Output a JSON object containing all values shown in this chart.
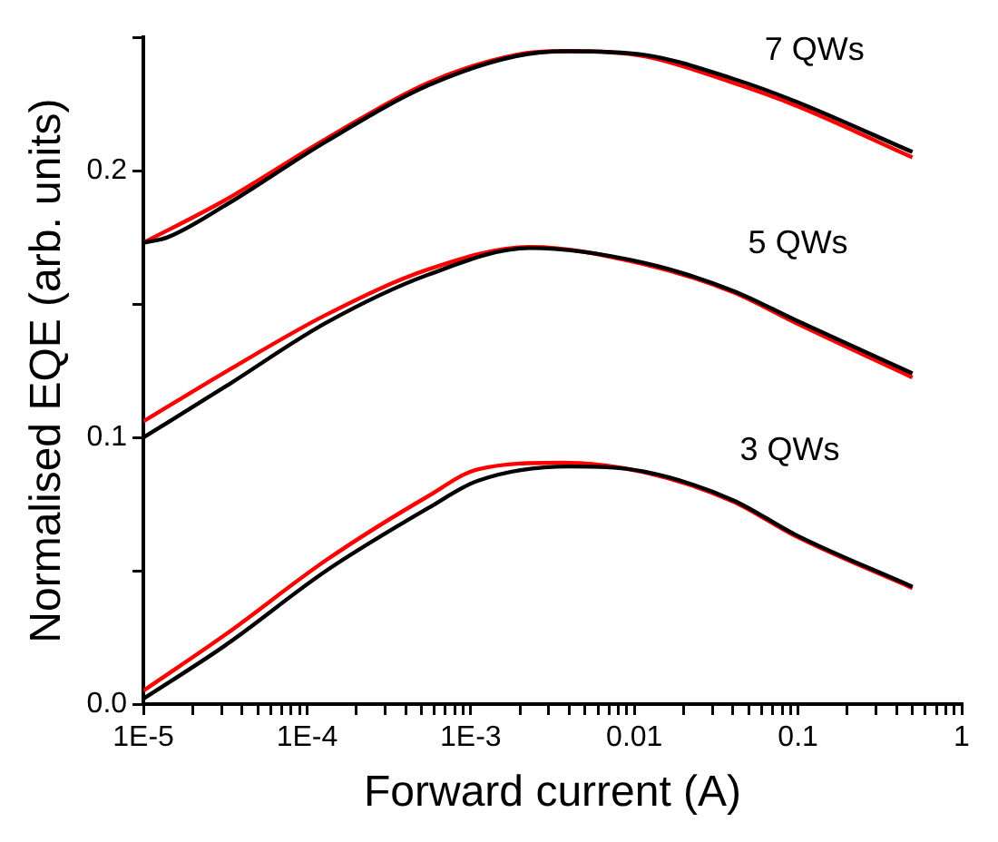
{
  "chart_data": {
    "type": "line",
    "xlabel": "Forward current (A)",
    "ylabel": "Normalised EQE (arb. units)",
    "log": "x",
    "grid": false,
    "legend": false,
    "marker": "none",
    "line_style": "solid",
    "xlim": [
      1e-05,
      1
    ],
    "ylim": [
      0,
      0.25
    ],
    "xticks": [
      {
        "value": 1e-05,
        "label": "1E-5"
      },
      {
        "value": 2e-05,
        "label": null
      },
      {
        "value": 3e-05,
        "label": null
      },
      {
        "value": 4e-05,
        "label": null
      },
      {
        "value": 5e-05,
        "label": null
      },
      {
        "value": 6e-05,
        "label": null
      },
      {
        "value": 7e-05,
        "label": null
      },
      {
        "value": 8e-05,
        "label": null
      },
      {
        "value": 9e-05,
        "label": null
      },
      {
        "value": 0.0001,
        "label": "1E-4"
      },
      {
        "value": 0.0002,
        "label": null
      },
      {
        "value": 0.0003,
        "label": null
      },
      {
        "value": 0.0004,
        "label": null
      },
      {
        "value": 0.0005,
        "label": null
      },
      {
        "value": 0.0006,
        "label": null
      },
      {
        "value": 0.0007,
        "label": null
      },
      {
        "value": 0.0008,
        "label": null
      },
      {
        "value": 0.0009,
        "label": null
      },
      {
        "value": 0.001,
        "label": "1E-3"
      },
      {
        "value": 0.002,
        "label": null
      },
      {
        "value": 0.003,
        "label": null
      },
      {
        "value": 0.004,
        "label": null
      },
      {
        "value": 0.005,
        "label": null
      },
      {
        "value": 0.006,
        "label": null
      },
      {
        "value": 0.007,
        "label": null
      },
      {
        "value": 0.008,
        "label": null
      },
      {
        "value": 0.009,
        "label": null
      },
      0.01,
      {
        "value": 0.02,
        "label": null
      },
      {
        "value": 0.03,
        "label": null
      },
      {
        "value": 0.04,
        "label": null
      },
      {
        "value": 0.05,
        "label": null
      },
      {
        "value": 0.06,
        "label": null
      },
      {
        "value": 0.07,
        "label": null
      },
      {
        "value": 0.08,
        "label": null
      },
      {
        "value": 0.09,
        "label": null
      },
      0.1,
      {
        "value": 0.2,
        "label": null
      },
      {
        "value": 0.3,
        "label": null
      },
      {
        "value": 0.4,
        "label": null
      },
      {
        "value": 0.5,
        "label": null
      },
      {
        "value": 0.6,
        "label": null
      },
      {
        "value": 0.7,
        "label": null
      },
      {
        "value": 0.8,
        "label": null
      },
      {
        "value": 0.9,
        "label": null
      },
      1
    ],
    "yticks": [
      {
        "value": 0,
        "label": "0.0"
      },
      {
        "value": 0.05,
        "label": null
      },
      0.1,
      {
        "value": 0.15,
        "label": null
      },
      0.2,
      {
        "value": 0.25,
        "label": null
      }
    ],
    "annotations": [
      "7 QWs",
      "5 QWs",
      "3 QWs"
    ],
    "series": [
      {
        "color": "#000000",
        "x": [
          1e-05,
          1.4e-05,
          3.16e-05,
          0.000131,
          0.00055,
          0.0019,
          0.0039,
          0.0114,
          0.04,
          0.0965,
          0.5
        ],
        "values": [
          0.173,
          0.175,
          0.187,
          0.211,
          0.232,
          0.243,
          0.2448,
          0.2435,
          0.2345,
          0.226,
          0.207
        ]
      },
      {
        "color": "#ff0000",
        "x": [
          1e-05,
          3.16e-05,
          0.000131,
          0.00055,
          0.0019,
          0.0039,
          0.0114,
          0.04,
          0.0965,
          0.5
        ],
        "values": [
          0.173,
          0.189,
          0.212,
          0.233,
          0.2435,
          0.2449,
          0.243,
          0.233,
          0.2245,
          0.205
        ]
      },
      {
        "color": "#000000",
        "x": [
          1e-05,
          3.16e-05,
          0.000131,
          0.00055,
          0.0023,
          0.0114,
          0.04,
          0.0965,
          0.5
        ],
        "values": [
          0.1,
          0.119,
          0.143,
          0.161,
          0.171,
          0.1655,
          0.155,
          0.144,
          0.124
        ]
      },
      {
        "color": "#ff0000",
        "x": [
          1e-05,
          3.16e-05,
          0.000131,
          0.00055,
          0.0023,
          0.0114,
          0.04,
          0.0965,
          0.5
        ],
        "values": [
          0.106,
          0.1245,
          0.146,
          0.163,
          0.1714,
          0.165,
          0.1545,
          0.143,
          0.1225
        ]
      },
      {
        "color": "#000000",
        "x": [
          1e-05,
          3.16e-05,
          0.000131,
          0.00055,
          0.0011,
          0.004,
          0.0114,
          0.04,
          0.0965,
          0.5
        ],
        "values": [
          0.002,
          0.022,
          0.05,
          0.0735,
          0.0837,
          0.0891,
          0.0872,
          0.0765,
          0.0635,
          0.044
        ]
      },
      {
        "color": "#ff0000",
        "x": [
          1e-05,
          3.16e-05,
          0.000131,
          0.00055,
          0.0011,
          0.0036,
          0.0114,
          0.04,
          0.0965,
          0.5
        ],
        "values": [
          0.005,
          0.026,
          0.054,
          0.078,
          0.088,
          0.0905,
          0.087,
          0.076,
          0.063,
          0.0435
        ]
      }
    ]
  }
}
